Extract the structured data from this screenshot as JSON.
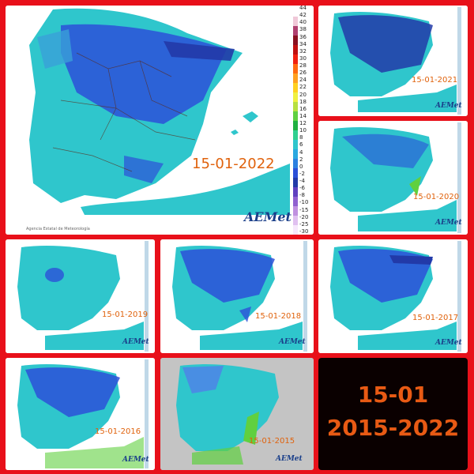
{
  "maps": [
    {
      "id": "2022",
      "date": "15-01-2022",
      "logo": "AEMet",
      "agency": "Agencia Estatal de Meteorología"
    },
    {
      "id": "2021",
      "date": "15-01-2021",
      "logo": "AEMet"
    },
    {
      "id": "2020",
      "date": "15-01-2020",
      "logo": "AEMet"
    },
    {
      "id": "2019",
      "date": "15-01-2019",
      "logo": "AEMet"
    },
    {
      "id": "2018",
      "date": "15-01-2018",
      "logo": "AEMet"
    },
    {
      "id": "2017",
      "date": "15-01-2017",
      "logo": "AEMet"
    },
    {
      "id": "2016",
      "date": "15-01-2016",
      "logo": "AEMet"
    },
    {
      "id": "2015",
      "date": "15-01-2015",
      "logo": "AEMet"
    }
  ],
  "legend": {
    "ticks": [
      "44",
      "42",
      "40",
      "38",
      "36",
      "34",
      "32",
      "30",
      "28",
      "26",
      "24",
      "22",
      "20",
      "18",
      "16",
      "14",
      "12",
      "10",
      "8",
      "6",
      "4",
      "2",
      "0",
      "-2",
      "-4",
      "-6",
      "-8",
      "-10",
      "-15",
      "-20",
      "-25",
      "-30"
    ]
  },
  "summary": {
    "line1": "15-01",
    "line2": "2015-2022"
  },
  "colors": {
    "frame": "#e8101a",
    "sea": "#ffffff",
    "land_base": "#2fc6cc",
    "cold": "#2c50d8",
    "very_cold": "#223aa8",
    "date_text": "#e0620c",
    "summary_text": "#e85a14",
    "summary_bg": "#0a0000"
  }
}
